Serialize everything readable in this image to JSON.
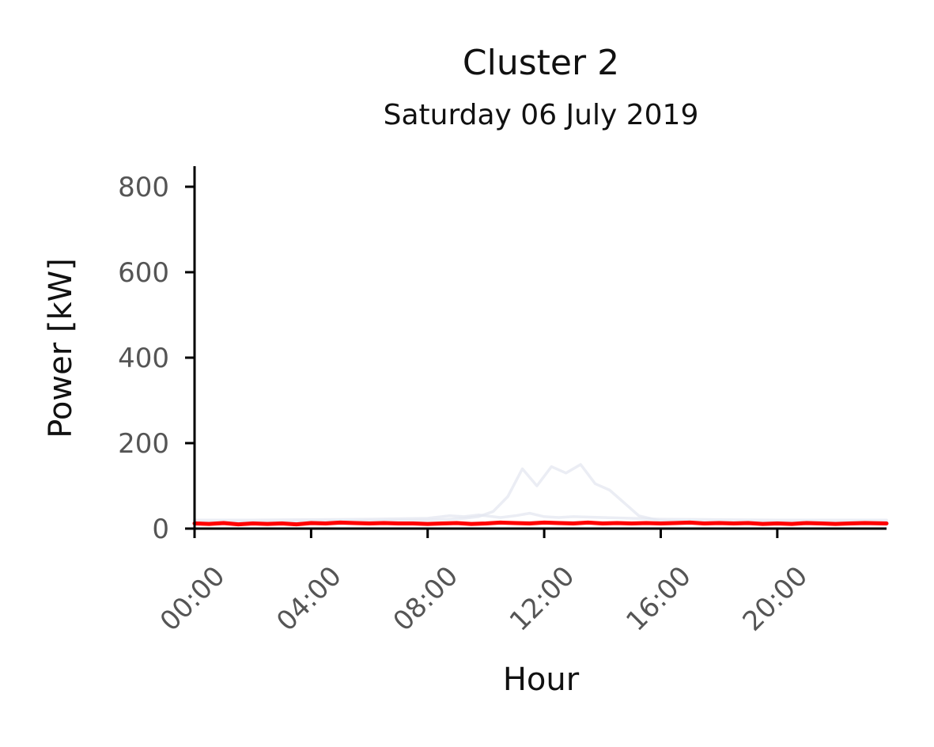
{
  "chart_data": {
    "type": "line",
    "title": "Cluster 2",
    "subtitle": "Saturday 06 July 2019",
    "xlabel": "Hour",
    "ylabel": "Power [kW]",
    "xlim": [
      0,
      23.75
    ],
    "ylim": [
      0,
      800
    ],
    "x_ticks": [
      0,
      4,
      8,
      12,
      16,
      20
    ],
    "x_tick_labels": [
      "00:00",
      "04:00",
      "08:00",
      "12:00",
      "16:00",
      "20:00"
    ],
    "y_ticks": [
      0,
      200,
      400,
      600,
      800
    ],
    "y_tick_labels": [
      "0",
      "200",
      "400",
      "600",
      "800"
    ],
    "grid": false,
    "series": [
      {
        "role": "background",
        "color": "#e3e5f0",
        "x": [
          0,
          1,
          2,
          3,
          4,
          5,
          6,
          7,
          8,
          8.75,
          9.25,
          9.75,
          10.25,
          10.75,
          11.25,
          11.75,
          12.25,
          12.75,
          13.25,
          13.75,
          14.25,
          14.75,
          15.25,
          16,
          17,
          18,
          19,
          20,
          21,
          22,
          23,
          23.75
        ],
        "y": [
          15,
          15,
          15,
          15,
          16,
          17,
          18,
          19,
          20,
          22,
          24,
          28,
          40,
          75,
          140,
          100,
          145,
          130,
          150,
          105,
          90,
          60,
          30,
          18,
          16,
          15,
          15,
          15,
          15,
          15,
          15,
          15
        ]
      },
      {
        "role": "background",
        "color": "#e3e5f0",
        "x": [
          0,
          2,
          4,
          6,
          8,
          8.75,
          9.25,
          9.75,
          10.5,
          11,
          11.5,
          12,
          12.5,
          13,
          14,
          15,
          16,
          18,
          20,
          22,
          23.75
        ],
        "y": [
          20,
          20,
          21,
          22,
          24,
          30,
          28,
          32,
          26,
          30,
          36,
          28,
          26,
          28,
          26,
          24,
          22,
          21,
          20,
          20,
          20
        ]
      },
      {
        "role": "background",
        "color": "#e3e5f0",
        "x": [
          0,
          4,
          8,
          10,
          12,
          14,
          16,
          20,
          23.75
        ],
        "y": [
          10,
          11,
          12,
          13,
          15,
          14,
          12,
          11,
          10
        ]
      },
      {
        "role": "highlight",
        "color": "#ff0000",
        "x": [
          0,
          0.5,
          1,
          1.5,
          2,
          2.5,
          3,
          3.5,
          4,
          4.5,
          5,
          5.5,
          6,
          6.5,
          7,
          7.5,
          8,
          8.5,
          9,
          9.5,
          10,
          10.5,
          11,
          11.5,
          12,
          12.5,
          13,
          13.5,
          14,
          14.5,
          15,
          15.5,
          16,
          16.5,
          17,
          17.5,
          18,
          18.5,
          19,
          19.5,
          20,
          20.5,
          21,
          21.5,
          22,
          22.5,
          23,
          23.75
        ],
        "y": [
          12,
          11,
          13,
          10,
          12,
          11,
          12,
          10,
          13,
          12,
          14,
          13,
          12,
          13,
          12,
          12,
          11,
          12,
          13,
          11,
          12,
          14,
          13,
          12,
          14,
          13,
          12,
          14,
          12,
          13,
          12,
          13,
          12,
          13,
          14,
          12,
          13,
          12,
          13,
          11,
          12,
          11,
          13,
          12,
          11,
          12,
          13,
          12
        ]
      }
    ]
  }
}
